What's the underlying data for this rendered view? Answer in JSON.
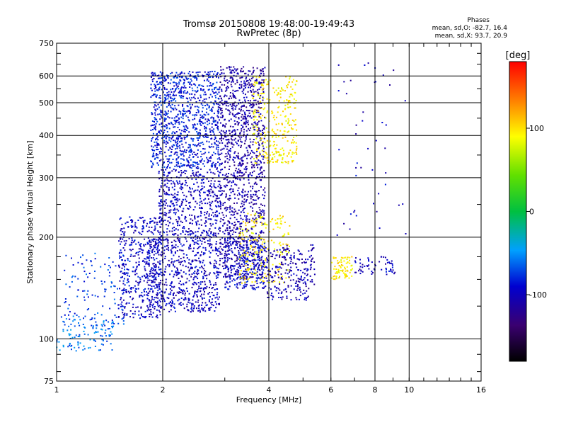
{
  "title": {
    "line1": "Tromsø 20150808 19:48:00-19:49:43",
    "line2": "RwPretec (8p)"
  },
  "stats": {
    "heading": "Phases",
    "line_o": "mean, sd,O: -82.7, 16.4",
    "line_x": "mean, sd,X: 93.7, 20.9"
  },
  "chart_data": {
    "type": "scatter",
    "xlabel": "Frequency [MHz]",
    "ylabel": "Stationary phase Virtual Height [km]",
    "xscale": "log",
    "yscale": "log",
    "xlim": [
      1,
      16
    ],
    "ylim": [
      75,
      750
    ],
    "x_ticks": [
      "1",
      "2",
      "4",
      "6",
      "8",
      "10",
      "16"
    ],
    "x_tick_values": [
      1,
      2,
      4,
      6,
      8,
      10,
      16
    ],
    "y_ticks": [
      "75",
      "100",
      "200",
      "300",
      "400",
      "500",
      "600",
      "750"
    ],
    "y_tick_values": [
      75,
      100,
      200,
      300,
      400,
      500,
      600,
      750
    ],
    "grid": true,
    "colorbar": {
      "label": "[deg]",
      "range": [
        -180,
        180
      ],
      "ticks": [
        "100",
        "0",
        "-100"
      ],
      "tick_values": [
        100,
        0,
        -100
      ]
    },
    "series": [
      {
        "freq_range": [
          1.0,
          1.45
        ],
        "height_range": [
          92,
          118
        ],
        "phase": -60,
        "n": 120
      },
      {
        "freq_range": [
          1.05,
          1.6
        ],
        "height_range": [
          110,
          180
        ],
        "phase": -75,
        "n": 120
      },
      {
        "freq_range": [
          1.5,
          2.0
        ],
        "height_range": [
          115,
          230
        ],
        "phase": -95,
        "n": 450
      },
      {
        "freq_range": [
          1.8,
          2.9
        ],
        "height_range": [
          120,
          200
        ],
        "phase": -100,
        "n": 650
      },
      {
        "freq_range": [
          1.95,
          2.9
        ],
        "height_range": [
          200,
          320
        ],
        "phase": -100,
        "n": 500
      },
      {
        "freq_range": [
          1.85,
          2.9
        ],
        "height_range": [
          320,
          620
        ],
        "phase": -85,
        "n": 1000
      },
      {
        "freq_range": [
          2.9,
          3.9
        ],
        "height_range": [
          150,
          300
        ],
        "phase": -110,
        "n": 500
      },
      {
        "freq_range": [
          2.9,
          3.9
        ],
        "height_range": [
          300,
          640
        ],
        "phase": -110,
        "n": 700
      },
      {
        "freq_range": [
          3.0,
          3.9
        ],
        "height_range": [
          140,
          200
        ],
        "phase": -95,
        "n": 300
      },
      {
        "freq_range": [
          3.6,
          4.8
        ],
        "height_range": [
          330,
          600
        ],
        "phase": 95,
        "n": 300
      },
      {
        "freq_range": [
          3.3,
          4.6
        ],
        "height_range": [
          145,
          235
        ],
        "phase": 95,
        "n": 200
      },
      {
        "freq_range": [
          3.9,
          5.4
        ],
        "height_range": [
          130,
          190
        ],
        "phase": -105,
        "n": 250
      },
      {
        "freq_range": [
          6.0,
          6.9
        ],
        "height_range": [
          150,
          175
        ],
        "phase": 95,
        "n": 80
      },
      {
        "freq_range": [
          7.0,
          9.2
        ],
        "height_range": [
          155,
          175
        ],
        "phase": -100,
        "n": 60
      },
      {
        "freq_range": [
          6.2,
          9.8
        ],
        "height_range": [
          180,
          660
        ],
        "phase": -100,
        "n": 45
      }
    ]
  }
}
